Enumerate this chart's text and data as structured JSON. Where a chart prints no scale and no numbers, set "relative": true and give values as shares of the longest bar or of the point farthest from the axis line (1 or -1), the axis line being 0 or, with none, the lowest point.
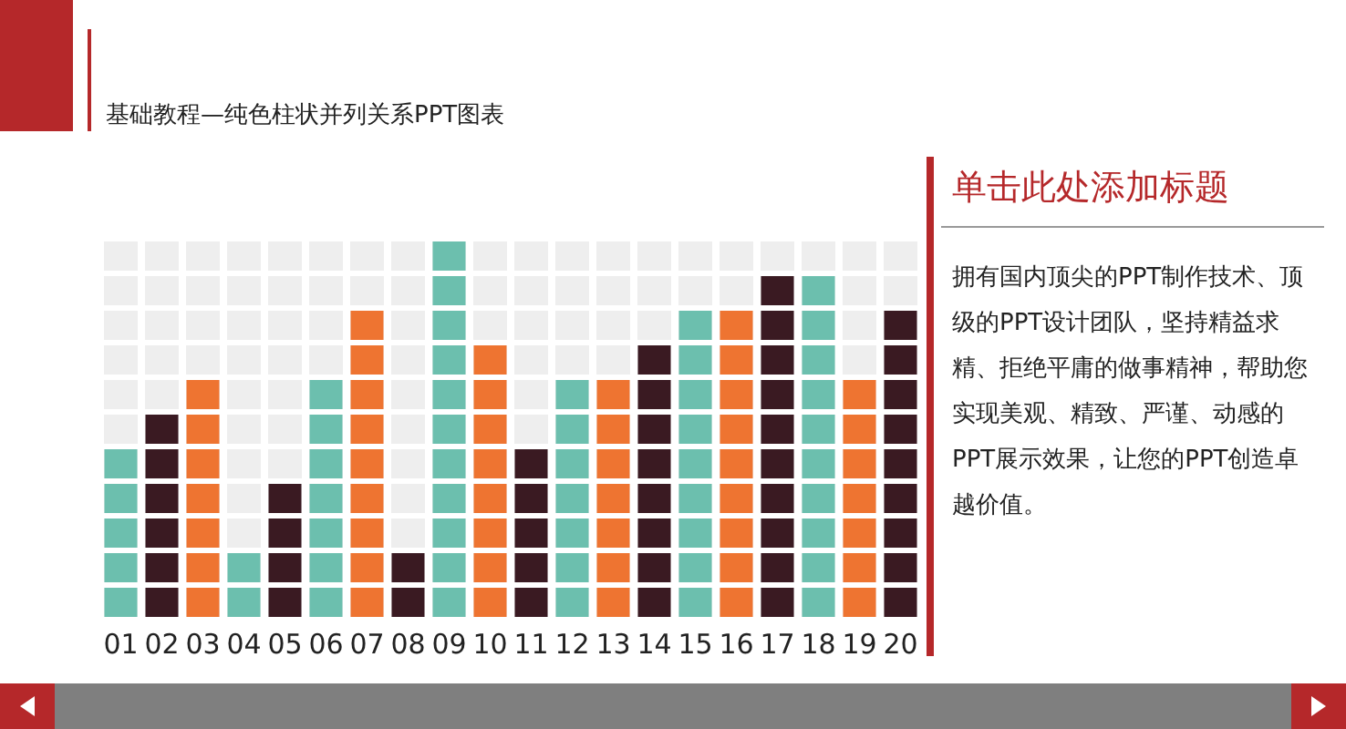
{
  "chart_data": {
    "type": "bar",
    "subtitle": "基础教程—纯色柱状并列关系PPT图表",
    "relative": true,
    "categories": [
      "01",
      "02",
      "03",
      "04",
      "05",
      "06",
      "07",
      "08",
      "09",
      "10",
      "11",
      "12",
      "13",
      "14",
      "15",
      "16",
      "17",
      "18",
      "19",
      "20"
    ],
    "values": [
      0.455,
      0.545,
      0.636,
      0.182,
      0.364,
      0.636,
      0.818,
      0.182,
      1,
      0.727,
      0.455,
      0.636,
      0.636,
      0.727,
      0.818,
      0.818,
      0.909,
      0.909,
      0.636,
      0.818
    ],
    "colors": [
      "#6cbfae",
      "#3a1a22",
      "#ee7431",
      "#6cbfae",
      "#3a1a22",
      "#6cbfae",
      "#ee7431",
      "#3a1a22",
      "#6cbfae",
      "#ee7431",
      "#3a1a22",
      "#6cbfae",
      "#ee7431",
      "#3a1a22",
      "#6cbfae",
      "#ee7431",
      "#3a1a22",
      "#6cbfae",
      "#ee7431",
      "#3a1a22"
    ],
    "annotations": [
      "单击此处添加标题",
      "拥有国内顶尖的PPT制作技术、顶级的PPT设计团队，坚持精益求精、拒绝平庸的做事精神，帮助您实现美观、精致、严谨、动感的PPT展示效果，让您的PPT创造卓越价值。"
    ]
  }
}
